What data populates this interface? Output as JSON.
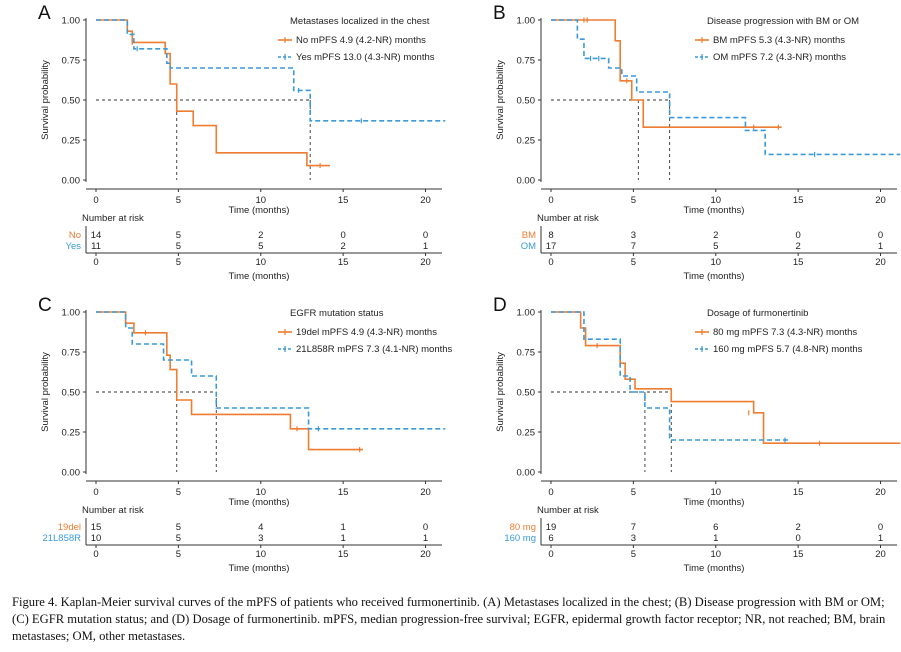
{
  "figure": {
    "caption": "Figure 4. Kaplan-Meier survival curves of the mPFS of patients who received furmonertinib. (A) Metastases localized in the chest; (B) Disease progression with BM or OM; (C) EGFR mutation status; and (D) Dosage of furmonertinib. mPFS, median progression-free survival; EGFR, epidermal growth factor receptor; NR, not reached; BM, brain metastases; OM, other metastases.",
    "colors": {
      "group1": "#ee7d31",
      "group2": "#3a9ad9",
      "median_line": "#333333",
      "axis": "#333333"
    }
  },
  "chart_data": [
    {
      "type": "line",
      "subtype": "kaplan-meier",
      "panel": "A",
      "legend_title": "Metastases localized in the chest",
      "xlabel": "Time (months)",
      "ylabel": "Survival probability",
      "xlim": [
        0,
        21
      ],
      "ylim": [
        0,
        1
      ],
      "xticks": [
        0,
        5,
        10,
        15,
        20
      ],
      "yticks": [
        "0.00",
        "0.25",
        "0.50",
        "0.75",
        "1.00"
      ],
      "median_survival": [
        4.9,
        13.0
      ],
      "series": [
        {
          "name": "No",
          "legend": "No mPFS 4.9 (4.2-NR) months",
          "steps": [
            [
              0,
              1.0
            ],
            [
              1.9,
              0.93
            ],
            [
              2.2,
              0.86
            ],
            [
              4.2,
              0.79
            ],
            [
              4.5,
              0.6
            ],
            [
              4.9,
              0.43
            ],
            [
              5.9,
              0.34
            ],
            [
              7.3,
              0.17
            ],
            [
              12.8,
              0.09
            ],
            [
              14.2,
              0.09
            ]
          ],
          "censored": [
            [
              2.2,
              0.86
            ],
            [
              13.6,
              0.09
            ]
          ]
        },
        {
          "name": "Yes",
          "legend": "Yes mPFS 13.0 (4.3-NR) months",
          "steps": [
            [
              0,
              1.0
            ],
            [
              1.9,
              0.91
            ],
            [
              2.3,
              0.82
            ],
            [
              4.3,
              0.73
            ],
            [
              4.5,
              0.7
            ],
            [
              12.0,
              0.56
            ],
            [
              13.0,
              0.37
            ],
            [
              21.2,
              0.37
            ]
          ],
          "censored": [
            [
              2.5,
              0.82
            ],
            [
              12.3,
              0.56
            ],
            [
              16.1,
              0.37
            ]
          ]
        }
      ],
      "risk_table": {
        "title": "Number at risk",
        "times": [
          0,
          5,
          10,
          15,
          20
        ],
        "rows": [
          {
            "label": "No",
            "values": [
              14,
              5,
              2,
              0,
              0
            ]
          },
          {
            "label": "Yes",
            "values": [
              11,
              5,
              5,
              2,
              1
            ]
          }
        ]
      }
    },
    {
      "type": "line",
      "subtype": "kaplan-meier",
      "panel": "B",
      "legend_title": "Disease progression with BM or OM",
      "xlabel": "Time (months)",
      "ylabel": "Survival probability",
      "xlim": [
        0,
        21
      ],
      "ylim": [
        0,
        1
      ],
      "xticks": [
        0,
        5,
        10,
        15,
        20
      ],
      "yticks": [
        "0.00",
        "0.25",
        "0.50",
        "0.75",
        "1.00"
      ],
      "median_survival": [
        5.3,
        7.2
      ],
      "series": [
        {
          "name": "BM",
          "legend": "BM mPFS 5.3 (4.3-NR) months",
          "steps": [
            [
              0,
              1.0
            ],
            [
              3.9,
              0.87
            ],
            [
              4.2,
              0.62
            ],
            [
              4.9,
              0.5
            ],
            [
              5.6,
              0.33
            ],
            [
              14.0,
              0.33
            ]
          ],
          "censored": [
            [
              2.0,
              1.0
            ],
            [
              2.2,
              1.0
            ],
            [
              4.6,
              0.62
            ],
            [
              12.3,
              0.33
            ],
            [
              13.8,
              0.33
            ]
          ]
        },
        {
          "name": "OM",
          "legend": "OM mPFS 7.2 (4.3-NR) months",
          "steps": [
            [
              0,
              1.0
            ],
            [
              1.6,
              0.88
            ],
            [
              2.0,
              0.76
            ],
            [
              3.5,
              0.7
            ],
            [
              4.3,
              0.65
            ],
            [
              5.2,
              0.55
            ],
            [
              7.2,
              0.39
            ],
            [
              11.8,
              0.31
            ],
            [
              13.0,
              0.16
            ],
            [
              21.2,
              0.16
            ]
          ],
          "censored": [
            [
              2.4,
              0.76
            ],
            [
              2.9,
              0.76
            ],
            [
              16.0,
              0.16
            ]
          ]
        }
      ],
      "risk_table": {
        "title": "Number at risk",
        "times": [
          0,
          5,
          10,
          15,
          20
        ],
        "rows": [
          {
            "label": "BM",
            "values": [
              8,
              3,
              2,
              0,
              0
            ]
          },
          {
            "label": "OM",
            "values": [
              17,
              7,
              5,
              2,
              1
            ]
          }
        ]
      }
    },
    {
      "type": "line",
      "subtype": "kaplan-meier",
      "panel": "C",
      "legend_title": "EGFR mutation status",
      "xlabel": "Time (months)",
      "ylabel": "Survival probability",
      "xlim": [
        0,
        21
      ],
      "ylim": [
        0,
        1
      ],
      "xticks": [
        0,
        5,
        10,
        15,
        20
      ],
      "yticks": [
        "0.00",
        "0.25",
        "0.50",
        "0.75",
        "1.00"
      ],
      "median_survival": [
        4.9,
        7.3
      ],
      "series": [
        {
          "name": "19del",
          "legend": "19del mPFS 4.9 (4.3-NR) months",
          "steps": [
            [
              0,
              1.0
            ],
            [
              1.8,
              0.93
            ],
            [
              2.3,
              0.87
            ],
            [
              4.3,
              0.73
            ],
            [
              4.5,
              0.64
            ],
            [
              4.9,
              0.45
            ],
            [
              5.8,
              0.36
            ],
            [
              11.8,
              0.27
            ],
            [
              12.9,
              0.14
            ],
            [
              16.2,
              0.14
            ]
          ],
          "censored": [
            [
              3.0,
              0.87
            ],
            [
              12.2,
              0.27
            ],
            [
              16.0,
              0.14
            ]
          ]
        },
        {
          "name": "21L858R",
          "legend": "21L858R mPFS 7.3 (4.1-NR) months",
          "steps": [
            [
              0,
              1.0
            ],
            [
              1.8,
              0.9
            ],
            [
              2.2,
              0.8
            ],
            [
              4.1,
              0.7
            ],
            [
              5.8,
              0.6
            ],
            [
              7.3,
              0.4
            ],
            [
              12.9,
              0.27
            ],
            [
              21.2,
              0.27
            ]
          ],
          "censored": [
            [
              13.5,
              0.27
            ]
          ]
        }
      ],
      "risk_table": {
        "title": "Number at risk",
        "times": [
          0,
          5,
          10,
          15,
          20
        ],
        "rows": [
          {
            "label": "19del",
            "values": [
              15,
              5,
              4,
              1,
              0
            ]
          },
          {
            "label": "21L858R",
            "values": [
              10,
              5,
              3,
              1,
              1
            ]
          }
        ]
      }
    },
    {
      "type": "line",
      "subtype": "kaplan-meier",
      "panel": "D",
      "legend_title": "Dosage of furmonertinib",
      "xlabel": "Time (months)",
      "ylabel": "Survival probability",
      "xlim": [
        0,
        21
      ],
      "ylim": [
        0,
        1
      ],
      "xticks": [
        0,
        5,
        10,
        15,
        20
      ],
      "yticks": [
        "0.00",
        "0.25",
        "0.50",
        "0.75",
        "1.00"
      ],
      "median_survival": [
        7.3,
        5.7
      ],
      "series": [
        {
          "name": "80 mg",
          "legend": "80 mg mPFS 7.3 (4.3-NR) months",
          "steps": [
            [
              0,
              1.0
            ],
            [
              1.8,
              0.9
            ],
            [
              2.1,
              0.79
            ],
            [
              4.2,
              0.68
            ],
            [
              4.5,
              0.58
            ],
            [
              5.1,
              0.52
            ],
            [
              7.3,
              0.44
            ],
            [
              12.3,
              0.37
            ],
            [
              12.9,
              0.18
            ],
            [
              21.2,
              0.18
            ]
          ],
          "censored": [
            [
              2.8,
              0.79
            ],
            [
              12.0,
              0.37
            ],
            [
              16.3,
              0.18
            ]
          ]
        },
        {
          "name": "160 mg",
          "legend": "160 mg mPFS 5.7 (4.8-NR) months",
          "steps": [
            [
              0,
              1.0
            ],
            [
              2.0,
              0.83
            ],
            [
              4.2,
              0.6
            ],
            [
              4.8,
              0.5
            ],
            [
              5.7,
              0.4
            ],
            [
              7.2,
              0.2
            ],
            [
              14.5,
              0.2
            ]
          ],
          "censored": [
            [
              14.2,
              0.2
            ]
          ]
        }
      ],
      "risk_table": {
        "title": "Number at risk",
        "times": [
          0,
          5,
          10,
          15,
          20
        ],
        "rows": [
          {
            "label": "80 mg",
            "values": [
              19,
              7,
              6,
              2,
              0
            ]
          },
          {
            "label": "160 mg",
            "values": [
              6,
              3,
              1,
              0,
              1
            ]
          }
        ]
      }
    }
  ]
}
